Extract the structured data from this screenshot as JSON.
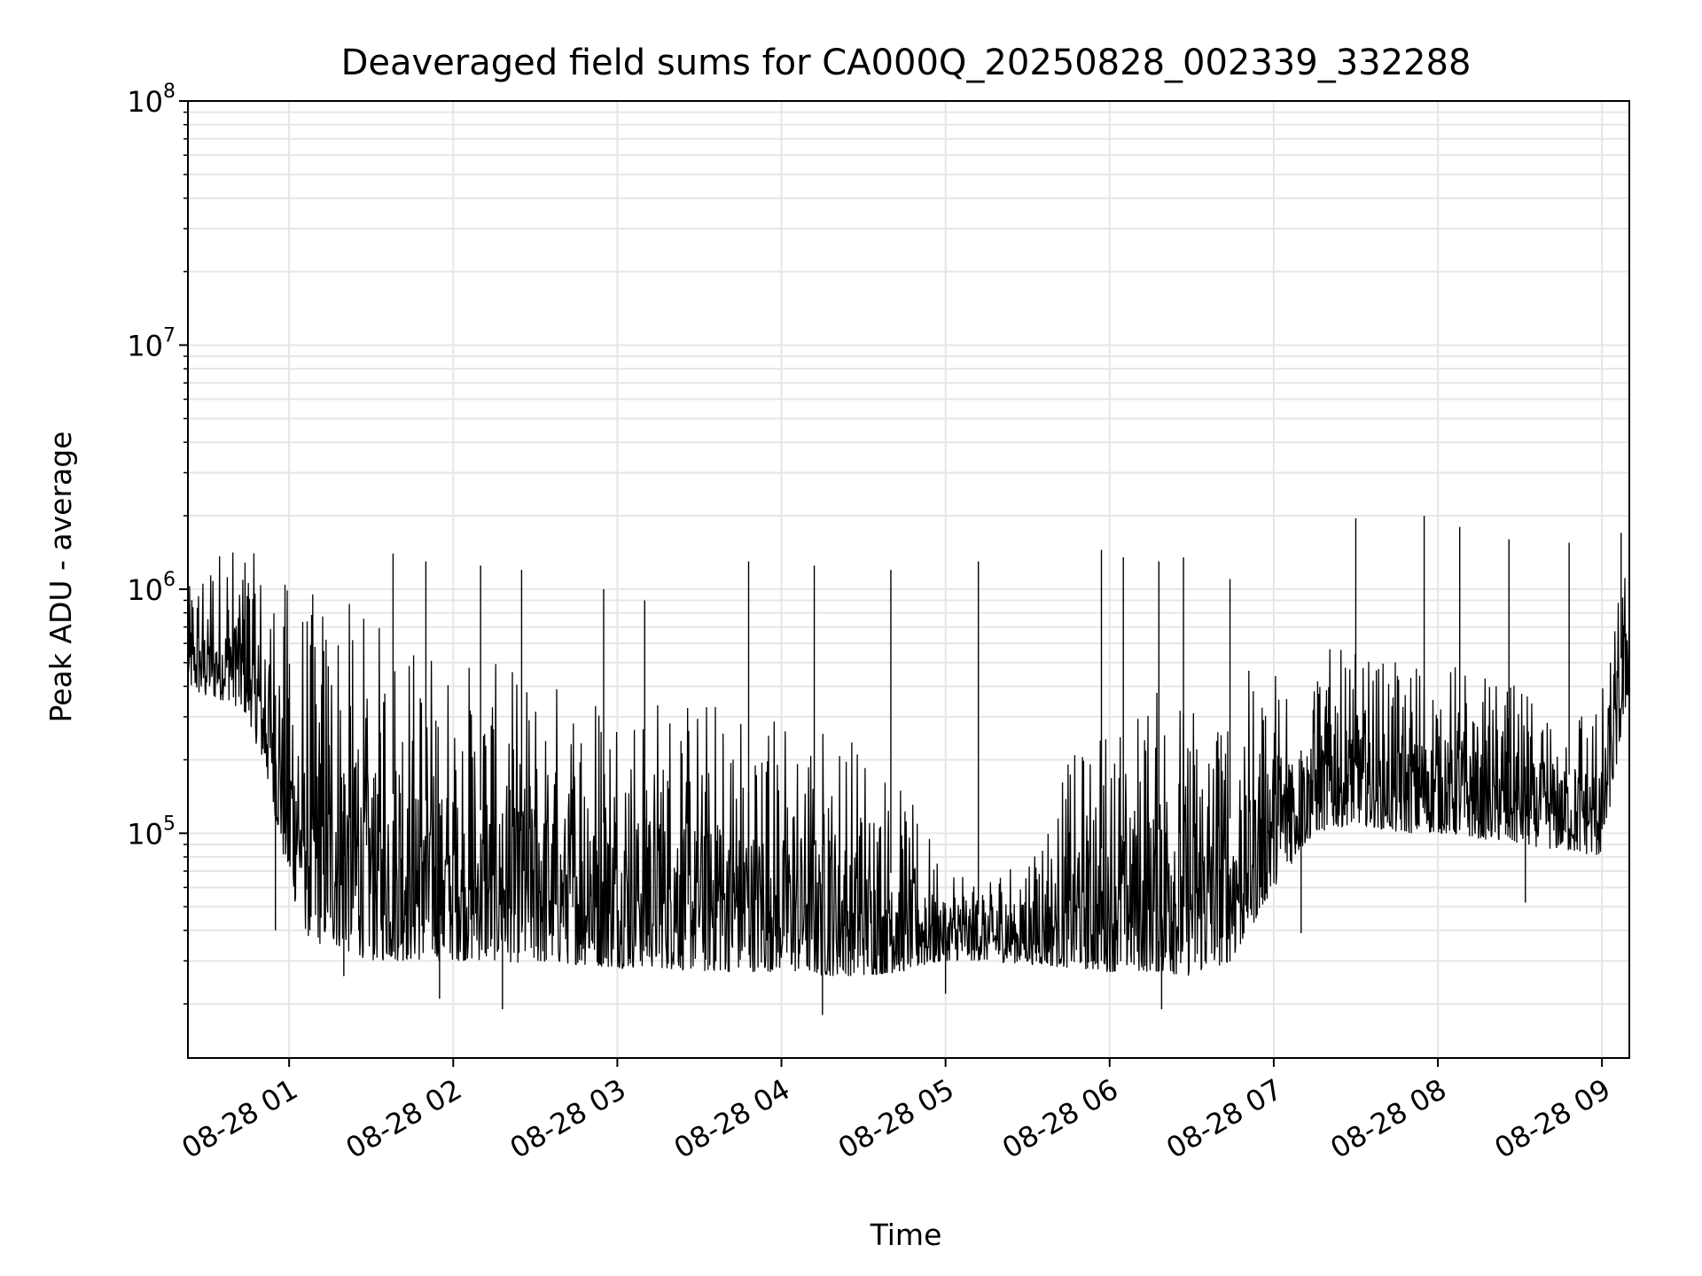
{
  "chart_data": {
    "type": "line",
    "title": "Deaveraged field sums for CA000Q_20250828_002339_332288",
    "xlabel": "Time",
    "ylabel": "Peak ADU - average",
    "y_scale": "log",
    "ylim": [
      12000,
      100000000
    ],
    "xlim": [
      "2025-08-28 00:23",
      "2025-08-28 09:10"
    ],
    "grid": true,
    "line_color": "#000000",
    "grid_color": "#e6e6e6",
    "x_ticks": [
      {
        "label": "08-28 01",
        "value": "2025-08-28 01:00"
      },
      {
        "label": "08-28 02",
        "value": "2025-08-28 02:00"
      },
      {
        "label": "08-28 03",
        "value": "2025-08-28 03:00"
      },
      {
        "label": "08-28 04",
        "value": "2025-08-28 04:00"
      },
      {
        "label": "08-28 05",
        "value": "2025-08-28 05:00"
      },
      {
        "label": "08-28 06",
        "value": "2025-08-28 06:00"
      },
      {
        "label": "08-28 07",
        "value": "2025-08-28 07:00"
      },
      {
        "label": "08-28 08",
        "value": "2025-08-28 08:00"
      },
      {
        "label": "08-28 09",
        "value": "2025-08-28 09:00"
      }
    ],
    "y_ticks": [
      {
        "base": "10",
        "exp": "5",
        "value": 100000
      },
      {
        "base": "10",
        "exp": "6",
        "value": 1000000
      },
      {
        "base": "10",
        "exp": "7",
        "value": 10000000
      },
      {
        "base": "10",
        "exp": "8",
        "value": 100000000
      }
    ],
    "series": [
      {
        "x": [
          "2025-08-28 00:23",
          "2025-08-28 00:30",
          "2025-08-28 00:38",
          "2025-08-28 00:45",
          "2025-08-28 00:53",
          "2025-08-28 01:00",
          "2025-08-28 01:08",
          "2025-08-28 01:15",
          "2025-08-28 01:23",
          "2025-08-28 01:30",
          "2025-08-28 01:38",
          "2025-08-28 01:45",
          "2025-08-28 01:53",
          "2025-08-28 02:00",
          "2025-08-28 02:15",
          "2025-08-28 02:30",
          "2025-08-28 02:45",
          "2025-08-28 03:00",
          "2025-08-28 03:15",
          "2025-08-28 03:30",
          "2025-08-28 03:45",
          "2025-08-28 04:00",
          "2025-08-28 04:15",
          "2025-08-28 04:30",
          "2025-08-28 04:45",
          "2025-08-28 05:00",
          "2025-08-28 05:15",
          "2025-08-28 05:30",
          "2025-08-28 05:45",
          "2025-08-28 06:00",
          "2025-08-28 06:15",
          "2025-08-28 06:30",
          "2025-08-28 06:45",
          "2025-08-28 07:00",
          "2025-08-28 07:15",
          "2025-08-28 07:30",
          "2025-08-28 07:45",
          "2025-08-28 08:00",
          "2025-08-28 08:15",
          "2025-08-28 08:30",
          "2025-08-28 08:45",
          "2025-08-28 09:00",
          "2025-08-28 09:10"
        ],
        "high": [
          1000000,
          1500000,
          1600000,
          1500000,
          1200000,
          1100000,
          1000000,
          1000000,
          900000,
          800000,
          700000,
          650000,
          600000,
          550000,
          500000,
          450000,
          450000,
          420000,
          400000,
          380000,
          350000,
          330000,
          300000,
          250000,
          150000,
          80000,
          70000,
          90000,
          200000,
          300000,
          400000,
          400000,
          450000,
          500000,
          600000,
          550000,
          500000,
          550000,
          450000,
          400000,
          350000,
          400000,
          1700000
        ],
        "low": [
          400000,
          350000,
          350000,
          300000,
          150000,
          60000,
          35000,
          35000,
          32000,
          30000,
          30000,
          30000,
          30000,
          30000,
          30000,
          29000,
          29000,
          28000,
          28000,
          27000,
          27000,
          27000,
          26000,
          26000,
          27000,
          30000,
          30000,
          29000,
          28000,
          27000,
          27000,
          26000,
          30000,
          60000,
          100000,
          110000,
          100000,
          100000,
          95000,
          90000,
          85000,
          80000,
          400000
        ],
        "spikes": [
          {
            "x": "2025-08-28 01:38",
            "y": 1400000
          },
          {
            "x": "2025-08-28 01:50",
            "y": 1300000
          },
          {
            "x": "2025-08-28 02:10",
            "y": 1250000
          },
          {
            "x": "2025-08-28 02:25",
            "y": 1200000
          },
          {
            "x": "2025-08-28 02:55",
            "y": 1000000
          },
          {
            "x": "2025-08-28 03:10",
            "y": 900000
          },
          {
            "x": "2025-08-28 03:48",
            "y": 1300000
          },
          {
            "x": "2025-08-28 04:12",
            "y": 1250000
          },
          {
            "x": "2025-08-28 04:40",
            "y": 1200000
          },
          {
            "x": "2025-08-28 05:12",
            "y": 1300000
          },
          {
            "x": "2025-08-28 05:57",
            "y": 1450000
          },
          {
            "x": "2025-08-28 06:05",
            "y": 1350000
          },
          {
            "x": "2025-08-28 06:18",
            "y": 1300000
          },
          {
            "x": "2025-08-28 06:27",
            "y": 1350000
          },
          {
            "x": "2025-08-28 06:44",
            "y": 1100000
          },
          {
            "x": "2025-08-28 07:30",
            "y": 1950000
          },
          {
            "x": "2025-08-28 07:55",
            "y": 2000000
          },
          {
            "x": "2025-08-28 08:08",
            "y": 1800000
          },
          {
            "x": "2025-08-28 08:26",
            "y": 1600000
          },
          {
            "x": "2025-08-28 08:48",
            "y": 1550000
          },
          {
            "x": "2025-08-28 09:07",
            "y": 1700000
          }
        ],
        "dips": [
          {
            "x": "2025-08-28 00:55",
            "y": 40000
          },
          {
            "x": "2025-08-28 01:20",
            "y": 26000
          },
          {
            "x": "2025-08-28 01:55",
            "y": 21000
          },
          {
            "x": "2025-08-28 02:18",
            "y": 19000
          },
          {
            "x": "2025-08-28 04:15",
            "y": 18000
          },
          {
            "x": "2025-08-28 05:00",
            "y": 22000
          },
          {
            "x": "2025-08-28 06:19",
            "y": 19000
          },
          {
            "x": "2025-08-28 07:10",
            "y": 39000
          },
          {
            "x": "2025-08-28 08:32",
            "y": 52000
          }
        ]
      }
    ]
  }
}
